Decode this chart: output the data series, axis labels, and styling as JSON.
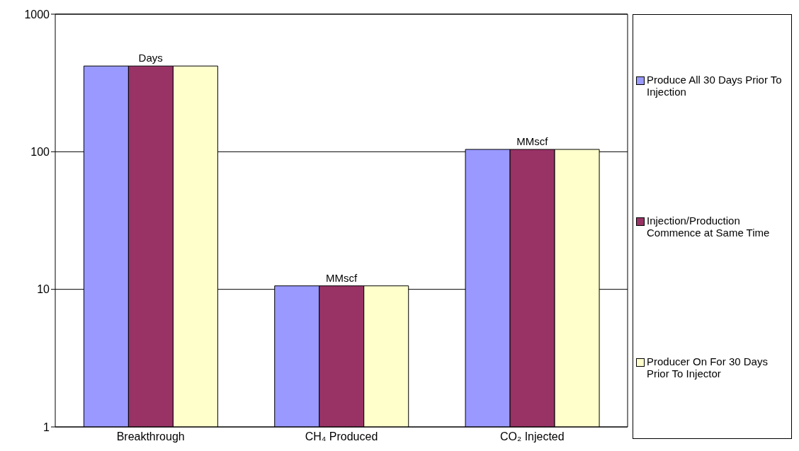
{
  "chart_data": {
    "type": "bar",
    "categories": [
      "Breakthrough",
      "CH₄ Produced",
      "CO₂ Injected"
    ],
    "series": [
      {
        "name": "Produce All 30 Days Prior To Injection",
        "color": "#9999ff",
        "values": [
          420,
          10.6,
          104
        ]
      },
      {
        "name": "Injection/Production Commence at Same Time",
        "color": "#993366",
        "values": [
          420,
          10.6,
          104
        ]
      },
      {
        "name": "Producer On For 30 Days Prior To Injector",
        "color": "#ffffcc",
        "values": [
          420,
          10.6,
          104
        ]
      }
    ],
    "log": "y",
    "ylim": [
      1,
      1000
    ],
    "yticks": [
      1,
      10,
      100,
      1000
    ],
    "grid": "y",
    "legend": "right",
    "annotations": [
      {
        "text": "Days",
        "x": "Breakthrough",
        "y": 420
      },
      {
        "text": "MMscf",
        "x": "CH₄ Produced",
        "y": 10.6
      },
      {
        "text": "MMscf",
        "x": "CO₂ Injected",
        "y": 104
      }
    ]
  }
}
